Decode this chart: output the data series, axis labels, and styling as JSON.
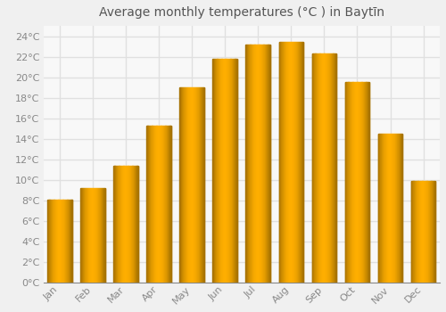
{
  "title": "Average monthly temperatures (°C ) in Baytīn",
  "months": [
    "Jan",
    "Feb",
    "Mar",
    "Apr",
    "May",
    "Jun",
    "Jul",
    "Aug",
    "Sep",
    "Oct",
    "Nov",
    "Dec"
  ],
  "values": [
    8.1,
    9.2,
    11.4,
    15.3,
    19.0,
    21.8,
    23.2,
    23.4,
    22.3,
    19.5,
    14.5,
    9.9
  ],
  "bar_color_center": "#FFB300",
  "bar_color_edge": "#F59B00",
  "background_color": "#f0f0f0",
  "plot_bg_color": "#f8f8f8",
  "grid_color": "#e0e0e0",
  "ylim": [
    0,
    25
  ],
  "yticks": [
    0,
    2,
    4,
    6,
    8,
    10,
    12,
    14,
    16,
    18,
    20,
    22,
    24
  ],
  "title_fontsize": 10,
  "tick_fontsize": 8,
  "bar_width": 0.75
}
